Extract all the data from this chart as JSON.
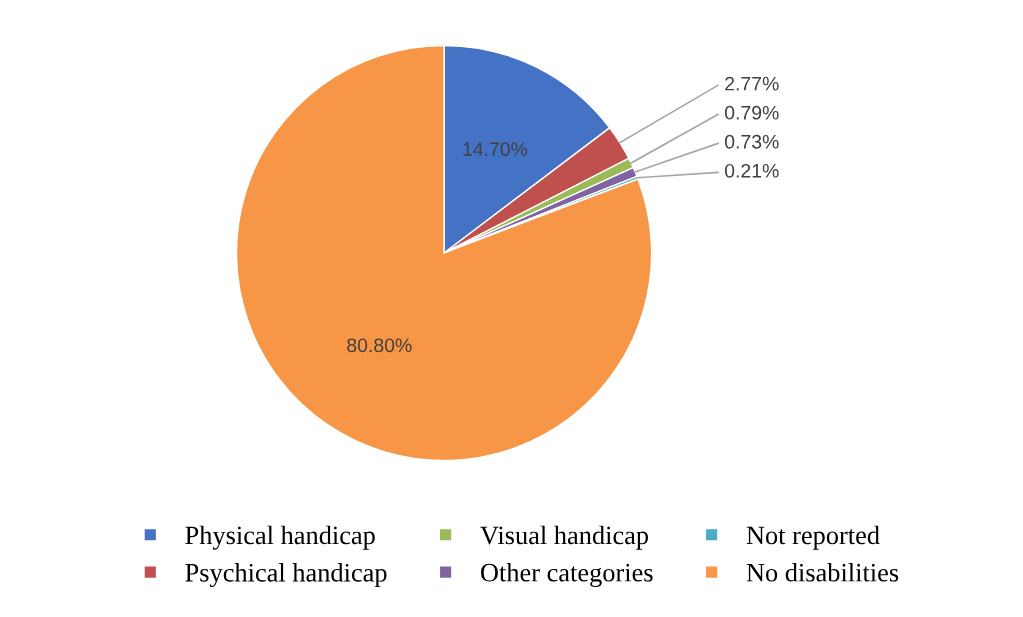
{
  "chart_data": {
    "type": "pie",
    "categories": [
      "Physical handicap",
      "Psychical handicap",
      "Visual handicap",
      "Other categories",
      "Not reported",
      "No disabilities"
    ],
    "values": [
      14.7,
      2.77,
      0.79,
      0.73,
      0.21,
      80.8
    ],
    "colors": [
      "#4472c4",
      "#c0504d",
      "#9bbb59",
      "#8064a2",
      "#4bacc6",
      "#f79646"
    ],
    "value_labels": [
      "14.70%",
      "2.77%",
      "0.79%",
      "0.73%",
      "0.21%",
      "80.80%"
    ],
    "legend": "bottom"
  }
}
